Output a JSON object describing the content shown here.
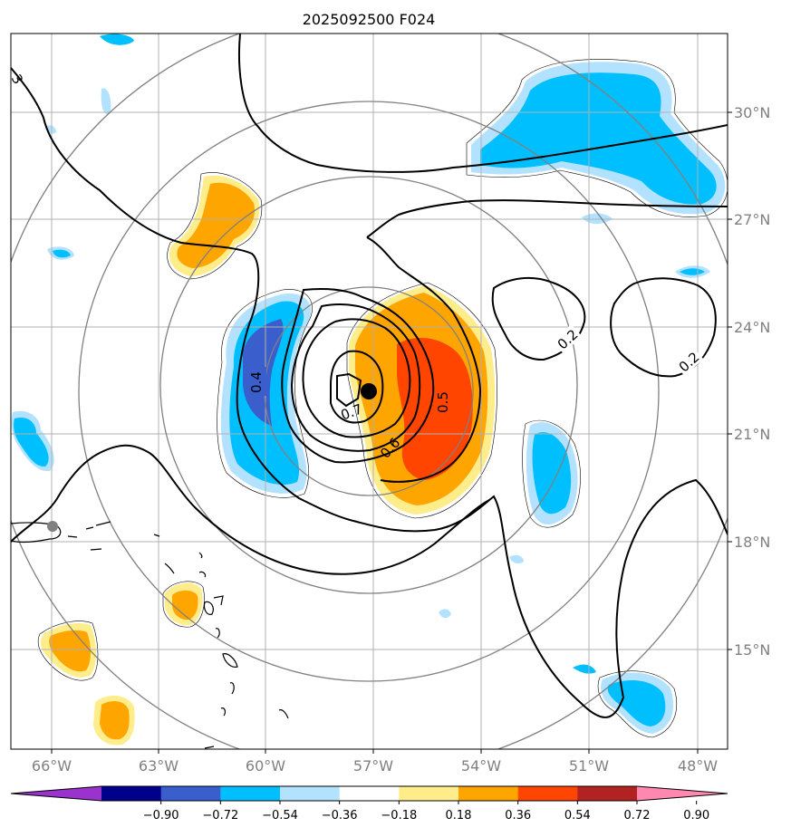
{
  "title": "2025092500 F024",
  "lon_ticks": [
    "66°W",
    "63°W",
    "60°W",
    "57°W",
    "54°W",
    "51°W",
    "48°W"
  ],
  "lat_ticks": [
    "30°N",
    "27°N",
    "24°N",
    "21°N",
    "18°N",
    "15°N"
  ],
  "contour_labels": [
    "0.2",
    "0.2",
    "0.4",
    "0.5",
    "0.6",
    "0.7",
    "3"
  ],
  "colorbar": {
    "labels": [
      "−0.90",
      "−0.72",
      "−0.54",
      "−0.36",
      "−0.18",
      "0.18",
      "0.36",
      "0.54",
      "0.72",
      "0.90"
    ],
    "colors": [
      "#9a32cd",
      "#00008b",
      "#3a5fcd",
      "#00bfff",
      "#b2e2ff",
      "#ffffff",
      "#ffec8b",
      "#ffa500",
      "#ff4500",
      "#b22222",
      "#ff88b0"
    ]
  },
  "center_marker": {
    "lon": -57.0,
    "lat": 22.2
  },
  "colors": {
    "positive_core": "#ff4500",
    "positive": "#ffa500",
    "positive_weak": "#ffec8b",
    "negative_weak": "#b2e2ff",
    "negative": "#00bfff",
    "negative_core": "#3a5fcd"
  }
}
